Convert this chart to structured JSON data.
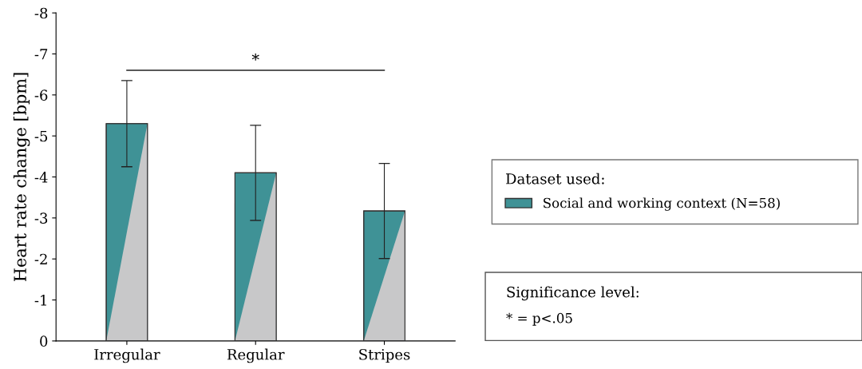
{
  "chart_data": {
    "type": "bar",
    "ylabel": "Heart rate change [bpm]",
    "categories": [
      "Irregular",
      "Regular",
      "Stripes"
    ],
    "series": [
      {
        "name": "Social and working context (N=58)",
        "color": "#3f9296",
        "values": [
          -5.3,
          -4.1,
          -3.17
        ],
        "errors": [
          1.05,
          1.16,
          1.16
        ]
      }
    ],
    "ylim": [
      0,
      -8
    ],
    "yticks": [
      0,
      -1,
      -2,
      -3,
      -4,
      -5,
      -6,
      -7,
      -8
    ],
    "legend": "right",
    "legend_title": "Dataset used:",
    "grid": false,
    "annotations": [
      "*",
      "Significance level:",
      "* = p<.05"
    ]
  }
}
